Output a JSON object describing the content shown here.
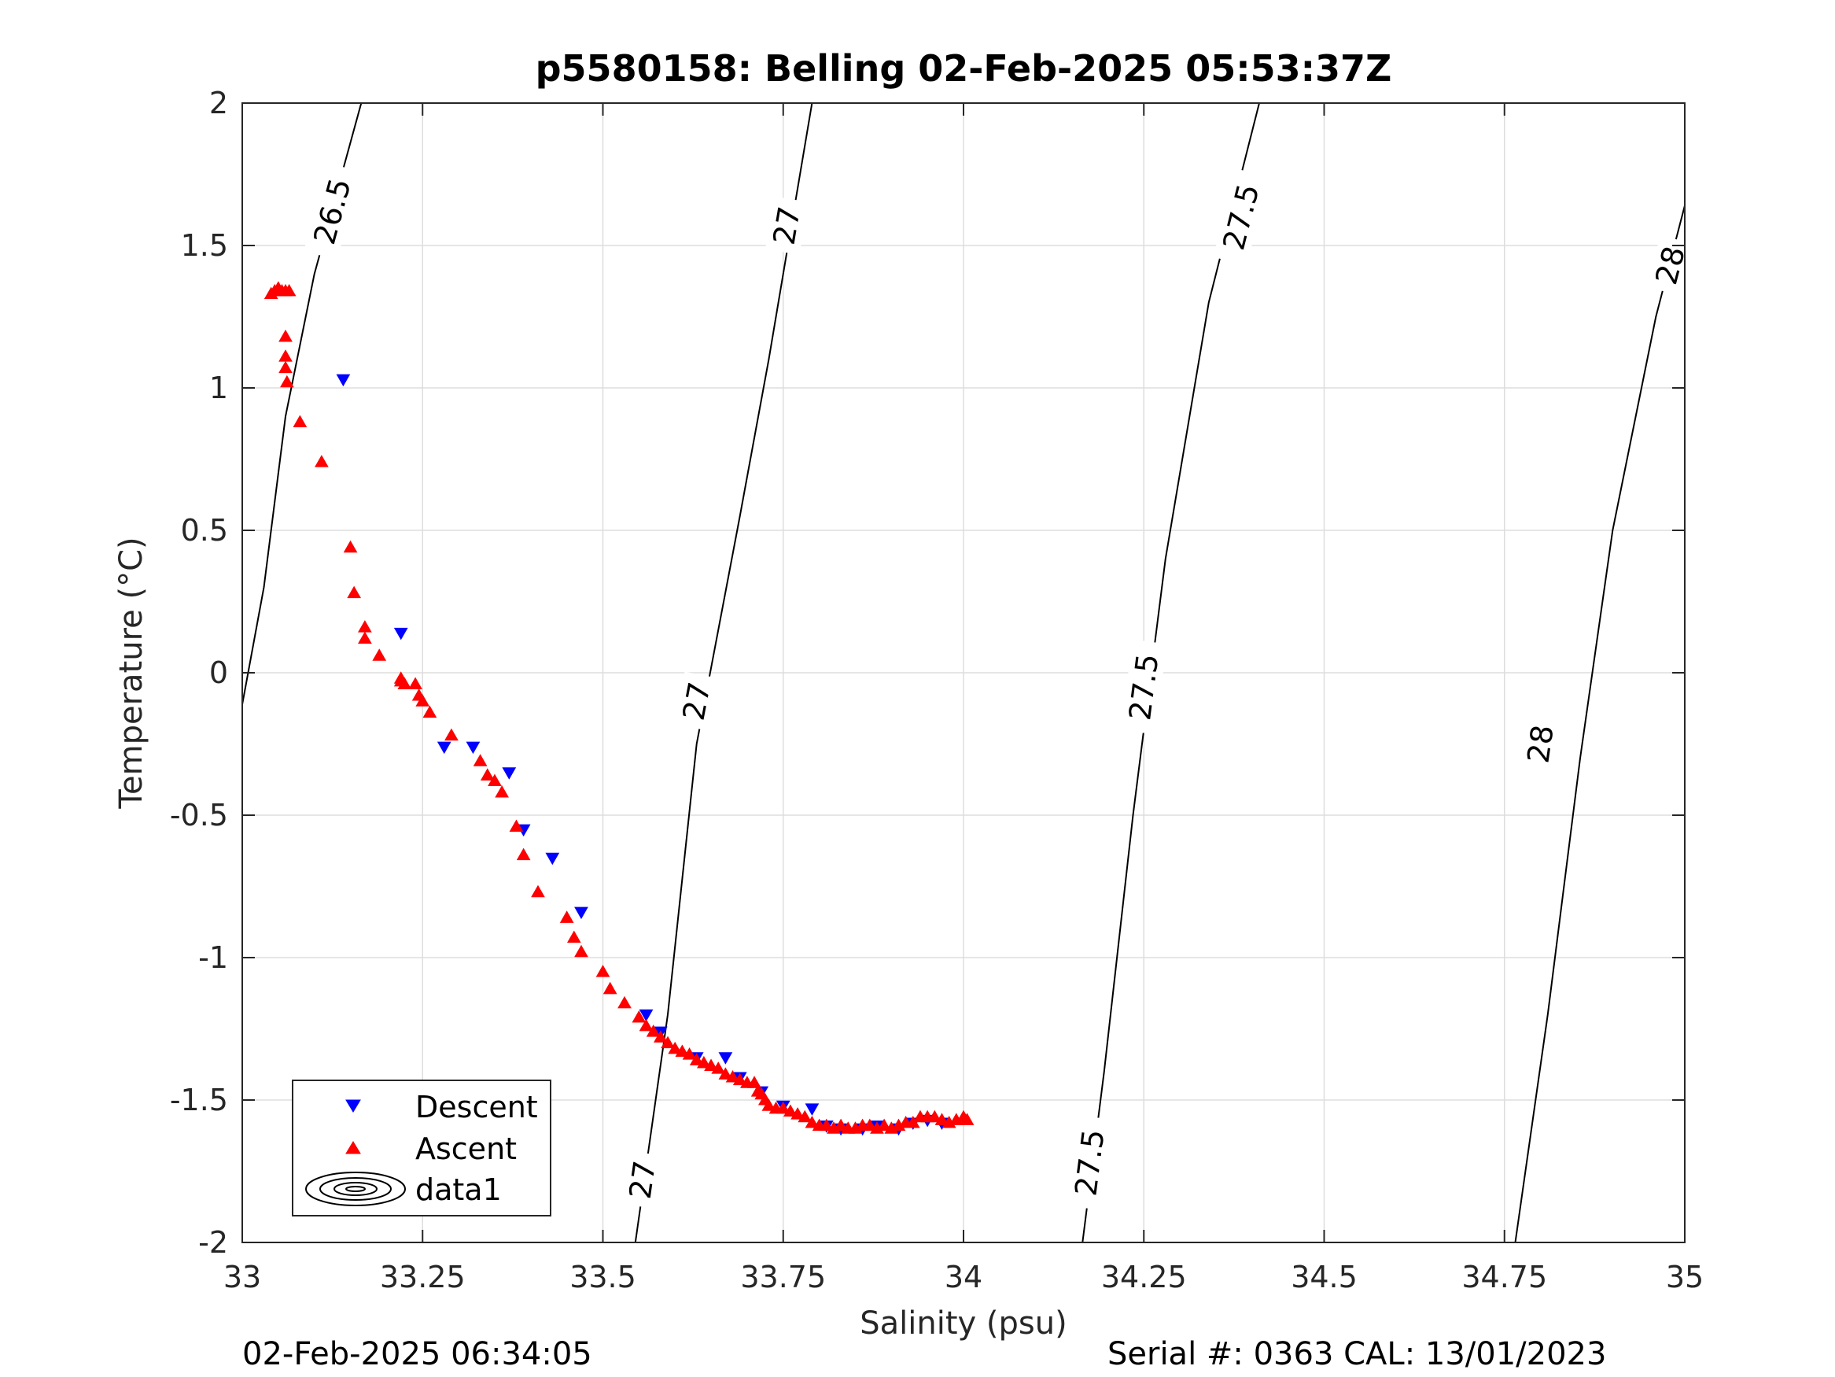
{
  "footer": {
    "left": "02-Feb-2025 06:34:05",
    "right": "Serial #: 0363  CAL: 13/01/2023"
  },
  "chart_data": {
    "type": "scatter",
    "title": "p5580158: Belling 02-Feb-2025 05:53:37Z",
    "xlabel": "Salinity (psu)",
    "ylabel": "Temperature (°C)",
    "xlim": [
      33,
      35
    ],
    "ylim": [
      -2,
      2
    ],
    "xticks": [
      33,
      33.25,
      33.5,
      33.75,
      34,
      34.25,
      34.5,
      34.75,
      35
    ],
    "xtick_labels": [
      "33",
      "33.25",
      "33.5",
      "33.75",
      "34",
      "34.25",
      "34.5",
      "34.75",
      "35"
    ],
    "yticks": [
      -2,
      -1.5,
      -1,
      -0.5,
      0,
      0.5,
      1,
      1.5,
      2
    ],
    "ytick_labels": [
      "-2",
      "-1.5",
      "-1",
      "-0.5",
      "0",
      "0.5",
      "1",
      "1.5",
      "2"
    ],
    "grid": true,
    "legend_position": "bottom-left",
    "colors": {
      "descent": "#0000ff",
      "ascent": "#ff0000",
      "contour": "#000000",
      "grid": "#dddddd"
    },
    "series": [
      {
        "name": "Descent",
        "marker": "triangle-down",
        "points": [
          [
            33.14,
            1.03
          ],
          [
            33.22,
            0.14
          ],
          [
            33.28,
            -0.26
          ],
          [
            33.32,
            -0.26
          ],
          [
            33.37,
            -0.35
          ],
          [
            33.39,
            -0.55
          ],
          [
            33.43,
            -0.65
          ],
          [
            33.47,
            -0.84
          ],
          [
            33.56,
            -1.2
          ],
          [
            33.58,
            -1.26
          ],
          [
            33.63,
            -1.35
          ],
          [
            33.67,
            -1.35
          ],
          [
            33.69,
            -1.42
          ],
          [
            33.72,
            -1.47
          ],
          [
            33.75,
            -1.52
          ],
          [
            33.79,
            -1.53
          ],
          [
            33.81,
            -1.59
          ],
          [
            33.83,
            -1.6
          ],
          [
            33.86,
            -1.6
          ],
          [
            33.88,
            -1.59
          ],
          [
            33.91,
            -1.6
          ],
          [
            33.93,
            -1.58
          ],
          [
            33.95,
            -1.57
          ],
          [
            33.97,
            -1.58
          ]
        ]
      },
      {
        "name": "Ascent",
        "marker": "triangle-up",
        "points": [
          [
            33.04,
            1.33
          ],
          [
            33.045,
            1.34
          ],
          [
            33.05,
            1.35
          ],
          [
            33.055,
            1.34
          ],
          [
            33.06,
            1.34
          ],
          [
            33.065,
            1.34
          ],
          [
            33.06,
            1.18
          ],
          [
            33.06,
            1.11
          ],
          [
            33.06,
            1.07
          ],
          [
            33.062,
            1.02
          ],
          [
            33.08,
            0.88
          ],
          [
            33.11,
            0.74
          ],
          [
            33.15,
            0.44
          ],
          [
            33.155,
            0.28
          ],
          [
            33.17,
            0.16
          ],
          [
            33.17,
            0.12
          ],
          [
            33.19,
            0.06
          ],
          [
            33.22,
            -0.02
          ],
          [
            33.22,
            -0.03
          ],
          [
            33.225,
            -0.04
          ],
          [
            33.24,
            -0.04
          ],
          [
            33.245,
            -0.08
          ],
          [
            33.25,
            -0.1
          ],
          [
            33.26,
            -0.14
          ],
          [
            33.29,
            -0.22
          ],
          [
            33.33,
            -0.31
          ],
          [
            33.34,
            -0.36
          ],
          [
            33.35,
            -0.38
          ],
          [
            33.36,
            -0.42
          ],
          [
            33.38,
            -0.54
          ],
          [
            33.39,
            -0.64
          ],
          [
            33.41,
            -0.77
          ],
          [
            33.45,
            -0.86
          ],
          [
            33.46,
            -0.93
          ],
          [
            33.47,
            -0.98
          ],
          [
            33.5,
            -1.05
          ],
          [
            33.51,
            -1.11
          ],
          [
            33.53,
            -1.16
          ],
          [
            33.55,
            -1.21
          ],
          [
            33.56,
            -1.24
          ],
          [
            33.57,
            -1.26
          ],
          [
            33.58,
            -1.28
          ],
          [
            33.59,
            -1.3
          ],
          [
            33.6,
            -1.32
          ],
          [
            33.61,
            -1.33
          ],
          [
            33.62,
            -1.34
          ],
          [
            33.63,
            -1.36
          ],
          [
            33.64,
            -1.37
          ],
          [
            33.65,
            -1.38
          ],
          [
            33.66,
            -1.39
          ],
          [
            33.67,
            -1.41
          ],
          [
            33.68,
            -1.42
          ],
          [
            33.69,
            -1.43
          ],
          [
            33.7,
            -1.44
          ],
          [
            33.71,
            -1.44
          ],
          [
            33.715,
            -1.47
          ],
          [
            33.72,
            -1.48
          ],
          [
            33.725,
            -1.5
          ],
          [
            33.73,
            -1.52
          ],
          [
            33.74,
            -1.53
          ],
          [
            33.75,
            -1.53
          ],
          [
            33.76,
            -1.54
          ],
          [
            33.77,
            -1.55
          ],
          [
            33.78,
            -1.56
          ],
          [
            33.79,
            -1.58
          ],
          [
            33.8,
            -1.59
          ],
          [
            33.81,
            -1.59
          ],
          [
            33.82,
            -1.6
          ],
          [
            33.83,
            -1.59
          ],
          [
            33.84,
            -1.6
          ],
          [
            33.85,
            -1.6
          ],
          [
            33.86,
            -1.59
          ],
          [
            33.87,
            -1.59
          ],
          [
            33.88,
            -1.6
          ],
          [
            33.89,
            -1.59
          ],
          [
            33.9,
            -1.6
          ],
          [
            33.91,
            -1.59
          ],
          [
            33.92,
            -1.58
          ],
          [
            33.93,
            -1.58
          ],
          [
            33.94,
            -1.56
          ],
          [
            33.95,
            -1.56
          ],
          [
            33.96,
            -1.56
          ],
          [
            33.97,
            -1.57
          ],
          [
            33.98,
            -1.58
          ],
          [
            33.99,
            -1.57
          ],
          [
            34.0,
            -1.56
          ],
          [
            34.005,
            -1.57
          ]
        ]
      }
    ],
    "legend": [
      "Descent",
      "Ascent",
      "data1"
    ],
    "contours": [
      {
        "level_label": "26.5",
        "points": [
          [
            32.995,
            -0.18
          ],
          [
            33.03,
            0.3
          ],
          [
            33.06,
            0.9
          ],
          [
            33.1,
            1.4
          ],
          [
            33.165,
            2.0
          ]
        ],
        "labels_at": [
          [
            33.125,
            1.62
          ]
        ]
      },
      {
        "level_label": "27",
        "points": [
          [
            33.545,
            -2.0
          ],
          [
            33.59,
            -1.2
          ],
          [
            33.63,
            -0.25
          ],
          [
            33.69,
            0.55
          ],
          [
            33.73,
            1.1
          ],
          [
            33.79,
            2.0
          ]
        ],
        "labels_at": [
          [
            33.555,
            -1.78
          ],
          [
            33.63,
            -0.1
          ],
          [
            33.755,
            1.57
          ]
        ]
      },
      {
        "level_label": "27.5",
        "points": [
          [
            34.165,
            -2.0
          ],
          [
            34.195,
            -1.4
          ],
          [
            34.235,
            -0.5
          ],
          [
            34.28,
            0.4
          ],
          [
            34.34,
            1.3
          ],
          [
            34.41,
            2.0
          ]
        ],
        "labels_at": [
          [
            34.175,
            -1.72
          ],
          [
            34.25,
            -0.05
          ],
          [
            34.385,
            1.6
          ]
        ]
      },
      {
        "level_label": "28",
        "points": [
          [
            34.765,
            -2.0
          ],
          [
            34.81,
            -1.2
          ],
          [
            34.855,
            -0.3
          ],
          [
            34.9,
            0.5
          ],
          [
            34.96,
            1.25
          ],
          [
            35.0,
            1.64
          ]
        ],
        "labels_at": [
          [
            34.8,
            -0.25
          ],
          [
            34.98,
            1.43
          ]
        ]
      }
    ]
  }
}
